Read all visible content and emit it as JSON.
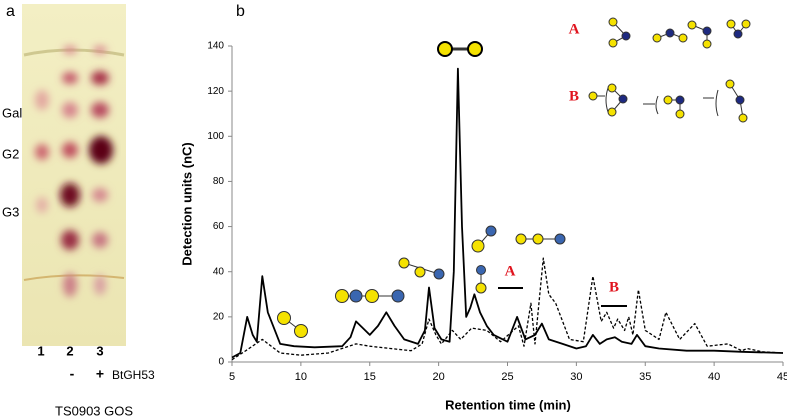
{
  "tlc": {
    "panel_label": "a",
    "band_labels": [
      "Gal",
      "G2",
      "G3"
    ],
    "lane_labels": [
      "1",
      "2",
      "3"
    ],
    "treatment_labels": [
      "-",
      "+"
    ],
    "enzyme": "BtGH53",
    "caption": "TS0903 GOS"
  },
  "chart_data": {
    "type": "line",
    "panel_label": "b",
    "x_label": "Retention time (min)",
    "y_label": "Detection units (nC)",
    "xlim": [
      5,
      45
    ],
    "xticks": [
      5,
      10,
      15,
      20,
      25,
      30,
      35,
      40,
      45
    ],
    "ylim": [
      0,
      140
    ],
    "yticks": [
      0,
      20,
      40,
      60,
      80,
      100,
      120,
      140
    ],
    "annotations": [
      "A",
      "B"
    ],
    "structure_legend": [
      "A",
      "B"
    ],
    "series": [
      {
        "color": "#000000",
        "style": "solid",
        "x": [
          5,
          5.6,
          6.1,
          6.5,
          6.8,
          7.2,
          7.6,
          8.5,
          9.5,
          11,
          13,
          13.6,
          14,
          14.5,
          15,
          15.6,
          16.2,
          16.8,
          17.5,
          18.5,
          19,
          19.3,
          19.7,
          20.2,
          20.8,
          21.1,
          21.4,
          21.7,
          22,
          22.3,
          22.6,
          23,
          23.5,
          24,
          25,
          25.7,
          26.3,
          27,
          27.5,
          28,
          29,
          30,
          30.7,
          31.2,
          31.7,
          32.2,
          32.8,
          33.3,
          34,
          34.4,
          35,
          36,
          38,
          40,
          42,
          45
        ],
        "values": [
          2,
          4,
          20,
          12,
          9,
          38,
          22,
          8,
          7,
          6.5,
          7,
          11,
          18,
          15,
          12,
          16,
          22,
          16,
          10,
          8,
          14,
          33,
          15,
          10,
          9,
          40,
          130,
          60,
          20,
          24,
          30,
          22,
          16,
          12,
          9,
          20,
          10,
          12,
          17,
          10,
          8,
          6,
          7,
          12,
          8,
          10,
          11,
          9,
          8,
          12,
          7,
          6,
          5,
          5,
          4.5,
          4
        ]
      },
      {
        "color": "#000000",
        "style": "dashed",
        "x": [
          5,
          6,
          7.2,
          8.5,
          10,
          12,
          14,
          15,
          16.5,
          18,
          18.8,
          19.3,
          19.8,
          20.2,
          21,
          21.6,
          22.4,
          23.5,
          24.5,
          25.8,
          26.2,
          26.7,
          27,
          27.6,
          28,
          28.5,
          29.5,
          30.5,
          31.2,
          31.8,
          32.2,
          32.7,
          33,
          33.5,
          33.8,
          34.1,
          34.5,
          35,
          36,
          36.5,
          37.5,
          38.6,
          39.5,
          41,
          42,
          42.4,
          43.5,
          45
        ],
        "values": [
          1,
          5,
          10,
          4,
          3,
          4,
          8,
          7,
          6,
          5,
          8,
          19,
          12,
          8,
          14,
          10,
          15,
          14,
          9,
          16,
          7,
          26,
          8,
          46,
          30,
          26,
          10,
          9,
          38,
          18,
          22,
          15,
          19,
          14,
          20,
          12,
          32,
          14,
          10,
          22,
          10,
          17,
          7,
          8,
          5,
          6,
          4.5,
          4
        ]
      }
    ]
  }
}
